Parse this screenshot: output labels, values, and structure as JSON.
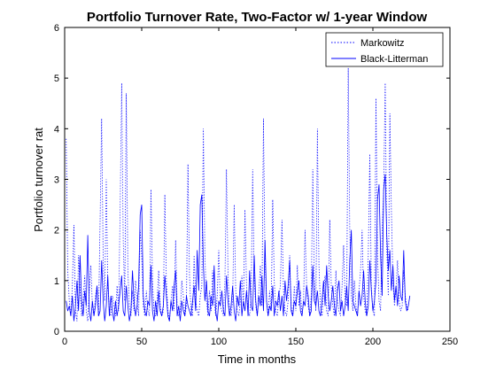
{
  "chart_data": {
    "type": "line",
    "title": "Portfolio Turnover Rate, Two-Factor w/ 1-year Window",
    "xlabel": "Time in months",
    "ylabel": "Portfolio turnover rat",
    "xlim": [
      0,
      250
    ],
    "ylim": [
      0,
      6
    ],
    "xticks": [
      "0",
      "50",
      "100",
      "150",
      "200",
      "250"
    ],
    "yticks": [
      "0",
      "1",
      "2",
      "3",
      "4",
      "5",
      "6"
    ],
    "grid": false,
    "legend": "top-right",
    "series": [
      {
        "name": "Markowitz",
        "style": "dotted",
        "color": "#0000ff",
        "values": [
          3.8,
          1.2,
          0.6,
          0.3,
          0.9,
          2.1,
          0.4,
          0.2,
          1.5,
          0.8,
          0.3,
          0.6,
          1.1,
          0.4,
          0.2,
          0.8,
          1.3,
          0.5,
          0.3,
          0.7,
          0.9,
          0.3,
          2.2,
          4.2,
          1.4,
          0.6,
          3.0,
          0.9,
          0.4,
          0.3,
          0.7,
          0.5,
          0.3,
          0.9,
          0.4,
          2.4,
          4.9,
          1.8,
          0.6,
          4.7,
          1.2,
          0.5,
          0.3,
          0.8,
          0.4,
          1.0,
          0.6,
          0.3,
          2.0,
          1.5,
          0.5,
          0.3,
          0.8,
          0.4,
          0.3,
          2.8,
          1.0,
          0.4,
          0.3,
          0.6,
          1.2,
          0.5,
          0.3,
          0.4,
          2.7,
          1.0,
          0.4,
          0.2,
          0.6,
          0.9,
          0.4,
          1.8,
          0.5,
          0.3,
          0.4,
          1.0,
          0.7,
          0.3,
          0.5,
          3.3,
          1.1,
          0.4,
          0.3,
          1.5,
          0.6,
          0.4,
          0.3,
          0.7,
          0.9,
          4.0,
          1.5,
          0.6,
          0.3,
          0.8,
          0.4,
          1.2,
          0.6,
          0.3,
          0.7,
          1.6,
          0.5,
          0.4,
          0.3,
          1.0,
          3.2,
          1.1,
          0.4,
          0.3,
          0.6,
          2.5,
          0.8,
          0.4,
          0.3,
          0.6,
          1.1,
          0.5,
          2.4,
          0.9,
          0.4,
          0.3,
          0.7,
          3.2,
          1.0,
          0.5,
          0.3,
          0.8,
          1.3,
          0.5,
          4.2,
          1.4,
          0.6,
          0.3,
          0.8,
          0.4,
          2.6,
          1.0,
          0.4,
          0.3,
          0.7,
          0.9,
          2.2,
          0.8,
          0.4,
          0.3,
          0.6,
          1.5,
          0.5,
          0.3,
          0.9,
          0.4,
          1.3,
          0.5,
          0.8,
          0.3,
          0.6,
          2.0,
          0.9,
          0.5,
          0.3,
          0.7,
          3.2,
          1.1,
          0.4,
          4.0,
          1.3,
          0.5,
          0.3,
          0.8,
          1.1,
          0.4,
          0.3,
          2.2,
          0.9,
          0.5,
          0.3,
          1.2,
          0.6,
          0.4,
          0.3,
          0.9,
          1.7,
          0.6,
          0.5,
          5.2,
          2.0,
          0.7,
          0.4,
          1.0,
          0.5,
          0.3,
          0.8,
          1.2,
          2.0,
          0.7,
          0.4,
          0.3,
          1.5,
          3.5,
          0.9,
          0.4,
          0.3,
          4.6,
          1.5,
          0.6,
          0.4,
          2.0,
          2.8,
          4.9,
          1.6,
          0.7,
          4.3,
          2.4,
          1.0,
          0.5,
          0.8,
          1.4,
          0.6,
          0.4,
          0.5,
          1.2,
          0.7,
          0.5,
          0.4
        ],
        "x_start": 1
      },
      {
        "name": "Black-Litterman",
        "style": "solid",
        "color": "#0000ff",
        "values": [
          0.6,
          0.4,
          0.5,
          0.3,
          0.7,
          0.2,
          0.5,
          1.0,
          0.4,
          1.5,
          0.6,
          0.3,
          0.8,
          0.5,
          1.9,
          0.4,
          0.2,
          0.6,
          0.3,
          0.5,
          0.9,
          0.3,
          0.4,
          1.4,
          0.6,
          0.2,
          0.5,
          1.1,
          0.3,
          0.7,
          0.4,
          0.2,
          0.6,
          0.3,
          0.5,
          0.8,
          1.1,
          0.4,
          0.3,
          0.9,
          0.5,
          0.2,
          0.4,
          1.2,
          0.6,
          0.3,
          0.5,
          0.9,
          2.3,
          2.5,
          0.7,
          0.4,
          0.3,
          0.6,
          0.5,
          1.3,
          0.4,
          0.2,
          0.6,
          0.3,
          0.8,
          0.4,
          0.3,
          0.5,
          1.1,
          0.7,
          0.3,
          0.2,
          0.6,
          0.4,
          0.9,
          1.2,
          0.3,
          0.5,
          0.2,
          0.6,
          0.4,
          0.3,
          0.7,
          0.5,
          0.4,
          0.3,
          0.6,
          0.9,
          0.4,
          1.6,
          0.8,
          2.5,
          2.7,
          1.3,
          0.6,
          1.0,
          0.4,
          0.3,
          0.7,
          0.5,
          1.3,
          0.4,
          0.2,
          0.6,
          0.5,
          0.8,
          0.4,
          0.3,
          1.1,
          0.6,
          0.3,
          0.5,
          0.9,
          0.4,
          0.2,
          0.7,
          0.5,
          1.0,
          0.3,
          0.6,
          0.4,
          0.8,
          0.3,
          1.2,
          0.5,
          0.4,
          1.5,
          0.6,
          0.3,
          0.7,
          0.5,
          1.1,
          0.4,
          1.8,
          0.6,
          0.3,
          0.5,
          0.4,
          0.9,
          0.3,
          0.6,
          0.5,
          0.8,
          0.4,
          0.7,
          0.3,
          1.0,
          0.6,
          0.9,
          1.4,
          0.4,
          0.3,
          0.6,
          0.5,
          0.8,
          1.0,
          0.4,
          0.3,
          0.6,
          0.5,
          0.9,
          0.7,
          0.3,
          0.4,
          1.3,
          0.6,
          0.5,
          0.8,
          0.4,
          0.3,
          0.6,
          1.0,
          0.5,
          1.3,
          0.7,
          0.4,
          0.6,
          0.9,
          0.5,
          0.3,
          0.8,
          1.0,
          0.4,
          0.6,
          0.3,
          0.5,
          0.9,
          0.4,
          1.4,
          2.0,
          0.6,
          0.5,
          0.4,
          0.3,
          0.8,
          0.5,
          0.7,
          1.2,
          0.6,
          0.3,
          0.5,
          1.4,
          0.8,
          0.4,
          0.6,
          1.0,
          2.6,
          2.9,
          1.5,
          0.7,
          2.8,
          3.1,
          1.9,
          1.2,
          1.6,
          0.8,
          1.3,
          0.6,
          0.9,
          0.5,
          1.1,
          0.7,
          0.6,
          1.6,
          0.6,
          0.4,
          0.5,
          0.7
        ],
        "x_start": 1
      }
    ]
  }
}
